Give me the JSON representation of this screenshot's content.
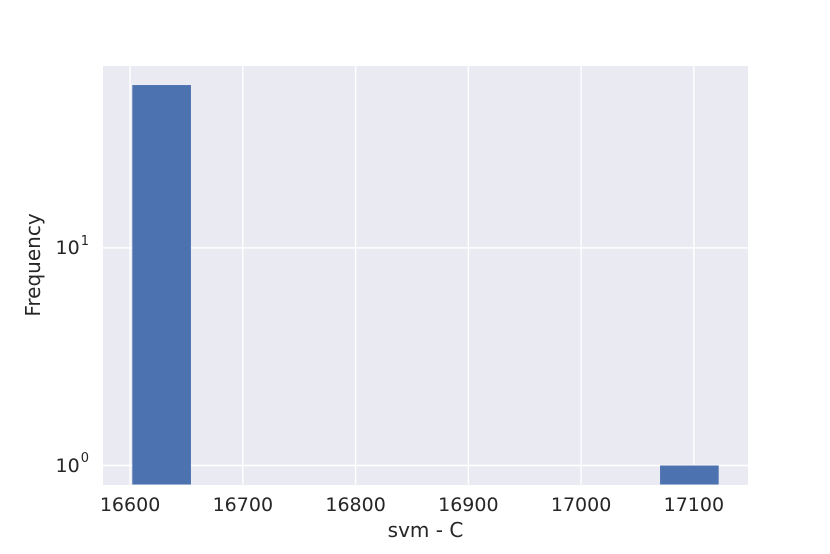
{
  "chart_data": {
    "type": "bar",
    "subtype": "histogram",
    "title": "",
    "xlabel": "svm - C",
    "ylabel": "Frequency",
    "xscale": "linear",
    "yscale": "log",
    "xlim": [
      16576,
      17148
    ],
    "ylim": [
      0.818,
      68.5
    ],
    "xticks": [
      16600,
      16700,
      16800,
      16900,
      17000,
      17100
    ],
    "yticks": [
      {
        "label": "10^0",
        "base": "10",
        "exp": "0",
        "value": 1
      },
      {
        "label": "10^1",
        "base": "10",
        "exp": "1",
        "value": 10
      }
    ],
    "bins": {
      "start": 16602,
      "end": 17122,
      "bin_width": 52,
      "num_bins": 10
    },
    "bars": [
      {
        "bin_start": 16602,
        "bin_end": 16654,
        "frequency": 56
      },
      {
        "bin_start": 17070,
        "bin_end": 17122,
        "frequency": 1
      }
    ],
    "grid": true,
    "legend_position": "none"
  },
  "style": {
    "figure_background": "#FFFFFF",
    "axes_background": "#EAEAF2",
    "grid_color": "#FFFFFF",
    "bar_color": "#4C72B0",
    "text_color": "#262626"
  }
}
